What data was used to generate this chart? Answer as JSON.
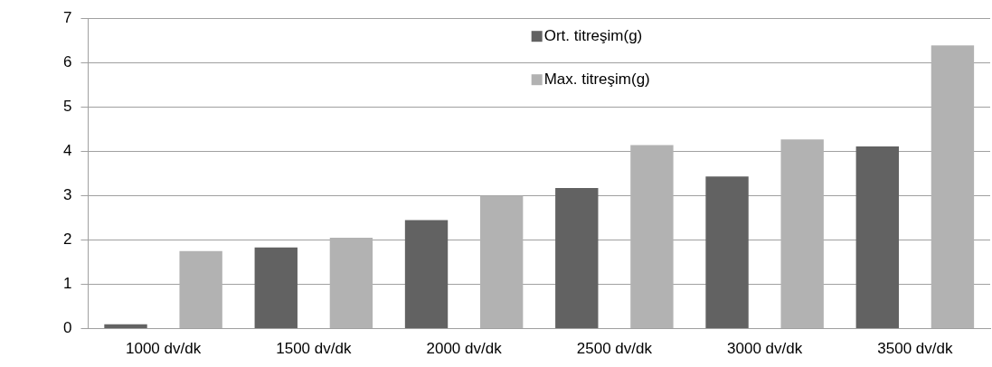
{
  "chart_data": {
    "type": "bar",
    "categories": [
      "1000 dv/dk",
      "1500 dv/dk",
      "2000 dv/dk",
      "2500 dv/dk",
      "3000 dv/dk",
      "3500 dv/dk"
    ],
    "series": [
      {
        "name": "Ort. titreşim(g)",
        "color": "#626262",
        "values": [
          0.1,
          1.83,
          2.45,
          3.17,
          3.43,
          4.11
        ]
      },
      {
        "name": "Max. titreşim(g)",
        "color": "#b2b2b2",
        "values": [
          1.75,
          2.05,
          3.0,
          4.14,
          4.27,
          6.39
        ]
      }
    ],
    "ylim": [
      0,
      7
    ],
    "yticks": [
      0,
      1,
      2,
      3,
      4,
      5,
      6,
      7
    ],
    "grid": "y",
    "legend": "top"
  }
}
